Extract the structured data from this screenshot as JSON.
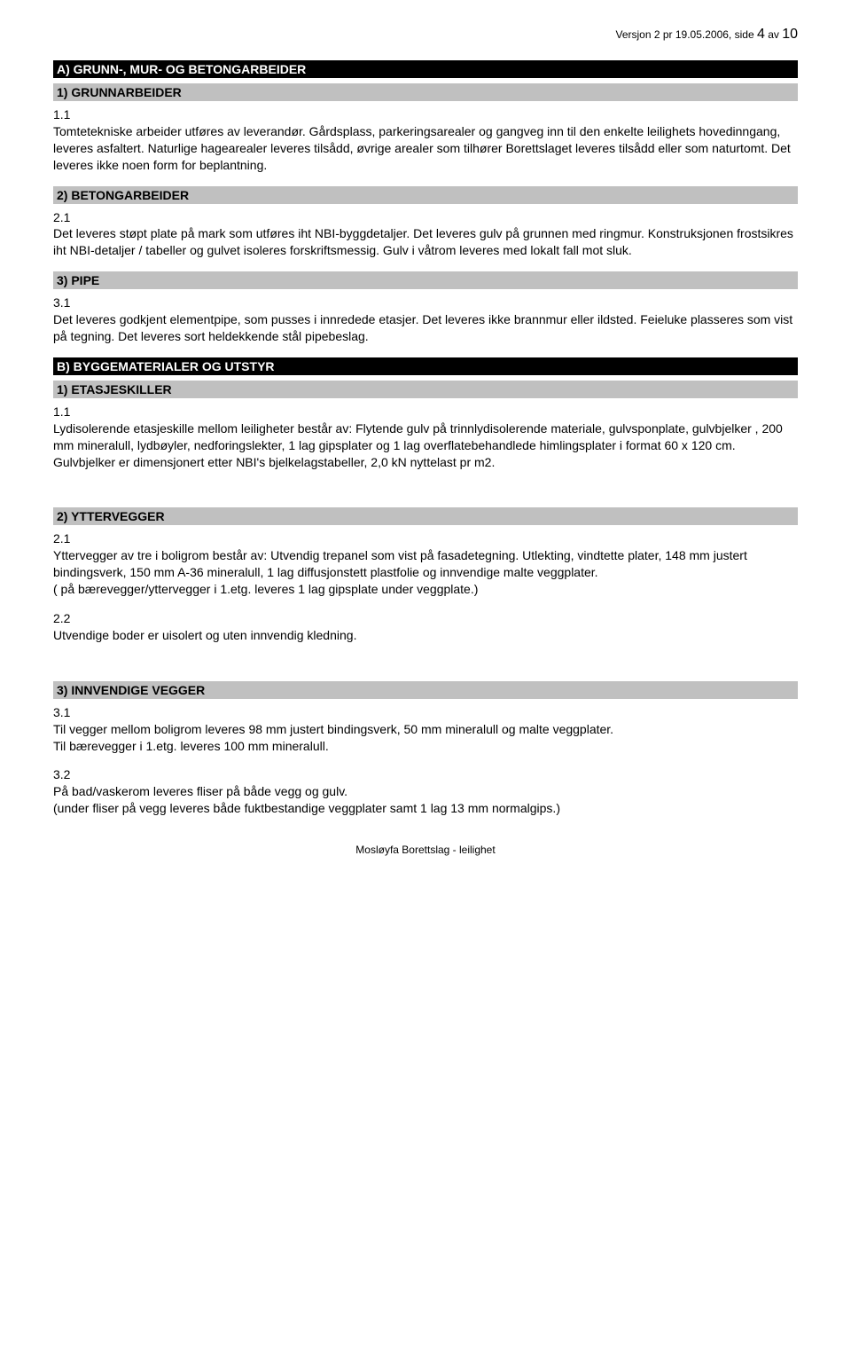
{
  "header": {
    "version_text": "Versjon 2 pr 19.05.2006, side ",
    "page_current": "4",
    "page_of_text": " av ",
    "page_total": "10"
  },
  "sectionA": {
    "title": "A) GRUNN-, MUR- OG BETONGARBEIDER",
    "sub1": {
      "title": "1) GRUNNARBEIDER",
      "item1_num": "1.1",
      "item1_text": "Tomtetekniske arbeider utføres av leverandør. Gårdsplass, parkeringsarealer og gangveg inn til den enkelte leilighets hovedinngang, leveres asfaltert. Naturlige hagearealer leveres tilsådd, øvrige arealer som tilhører Borettslaget leveres tilsådd eller som naturtomt. Det leveres ikke noen form for beplantning."
    },
    "sub2": {
      "title": "2) BETONGARBEIDER",
      "item1_num": "2.1",
      "item1_text": "Det leveres støpt plate på mark som utføres iht NBI-byggdetaljer. Det leveres gulv på grunnen med ringmur. Konstruksjonen frostsikres iht NBI-detaljer / tabeller og gulvet isoleres forskriftsmessig. Gulv i våtrom leveres med lokalt fall mot sluk."
    },
    "sub3": {
      "title": "3) PIPE",
      "item1_num": "3.1",
      "item1_text": "Det leveres godkjent elementpipe, som pusses i innredede etasjer. Det leveres ikke brannmur eller ildsted. Feieluke plasseres som vist på tegning. Det leveres sort heldekkende stål pipebeslag."
    }
  },
  "sectionB": {
    "title": "B) BYGGEMATERIALER OG UTSTYR",
    "sub1": {
      "title": "1) ETASJESKILLER",
      "item1_num": "1.1",
      "item1_text": "Lydisolerende etasjeskille  mellom leiligheter består av: Flytende gulv på trinnlydisolerende materiale, gulvsponplate, gulvbjelker , 200 mm mineralull, lydbøyler, nedforingslekter, 1 lag gipsplater og 1 lag overflatebehandlede himlingsplater i format 60 x 120 cm. Gulvbjelker er dimensjonert etter NBI's bjelkelagstabeller,  2,0 kN nyttelast pr m2."
    },
    "sub2": {
      "title": "2) YTTERVEGGER",
      "item1_num": "2.1",
      "item1_text": "Yttervegger av tre i boligrom består av: Utvendig trepanel som vist på fasadetegning. Utlekting, vindtette plater, 148 mm justert bindingsverk, 150 mm A-36 mineralull, 1 lag diffusjonstett plastfolie og innvendige malte veggplater.",
      "item1_text_b": "( på bærevegger/yttervegger i 1.etg. leveres 1 lag gipsplate under veggplate.)",
      "item2_num": "2.2",
      "item2_text": "Utvendige boder er uisolert og uten innvendig kledning."
    },
    "sub3": {
      "title": "3) INNVENDIGE VEGGER",
      "item1_num": "3.1",
      "item1_text": "Til vegger mellom boligrom leveres 98 mm justert bindingsverk, 50 mm mineralull og malte veggplater.",
      "item1_text_b": "Til bærevegger i 1.etg. leveres 100 mm mineralull.",
      "item2_num": "3.2",
      "item2_text": "På bad/vaskerom leveres fliser på både vegg og gulv.",
      "item2_text_b": "(under fliser på vegg leveres både fuktbestandige veggplater samt 1 lag 13 mm normalgips.)"
    }
  },
  "footer": {
    "text": "Mosløyfa Borettslag - leilighet"
  }
}
